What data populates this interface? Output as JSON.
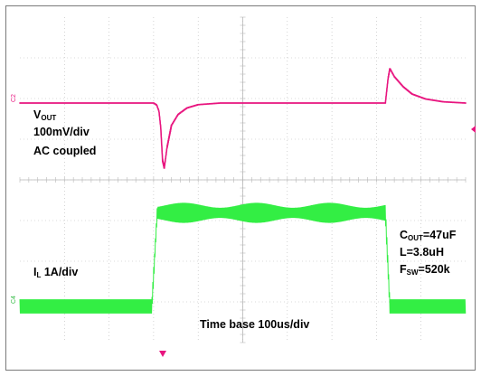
{
  "annotations": {
    "vout_main": "V",
    "vout_sub": "OUT",
    "vout_scale": "100mV/div",
    "vout_coupling": "AC coupled",
    "il_main": "I",
    "il_sub": "L",
    "il_scale": " 1A/div",
    "timebase": "Time base 100us/div",
    "cout_main": "C",
    "cout_sub": "OUT",
    "cout_value": "=47uF",
    "inductor": "L=3.8uH",
    "fsw_main": "F",
    "fsw_sub": "SW",
    "fsw_value": "=520k"
  },
  "channel_markers": {
    "ch2": "2",
    "ch4": "4"
  },
  "chart_data": {
    "type": "line",
    "grid": "on",
    "grid_divisions": {
      "x": 10,
      "y": 8
    },
    "x_units": "us",
    "xlim": [
      0,
      1000
    ],
    "series": [
      {
        "name": "VOUT",
        "color": "#e8157f",
        "units": "mV",
        "points": [
          [
            0,
            0
          ],
          [
            300,
            0
          ],
          [
            307,
            -5
          ],
          [
            312,
            -20
          ],
          [
            316,
            -60
          ],
          [
            320,
            -140
          ],
          [
            324,
            -160
          ],
          [
            330,
            -110
          ],
          [
            340,
            -55
          ],
          [
            355,
            -28
          ],
          [
            375,
            -12
          ],
          [
            400,
            -4
          ],
          [
            450,
            0
          ],
          [
            820,
            0
          ],
          [
            826,
            60
          ],
          [
            830,
            85
          ],
          [
            840,
            65
          ],
          [
            860,
            40
          ],
          [
            880,
            22
          ],
          [
            910,
            10
          ],
          [
            950,
            3
          ],
          [
            1000,
            0
          ]
        ]
      },
      {
        "name": "IL",
        "color": "#33ee44",
        "units": "A",
        "average": [
          [
            0,
            0
          ],
          [
            296,
            0
          ],
          [
            308,
            2.3
          ],
          [
            820,
            2.3
          ],
          [
            830,
            0
          ],
          [
            1000,
            0
          ]
        ],
        "ripple_pp": 0.5
      }
    ]
  },
  "colors": {
    "grid": "#b8b8b8",
    "frame": "#7a7a7a",
    "vout_trace": "#e8157f",
    "il_trace": "#33ee44",
    "marker": "#e8157f"
  }
}
